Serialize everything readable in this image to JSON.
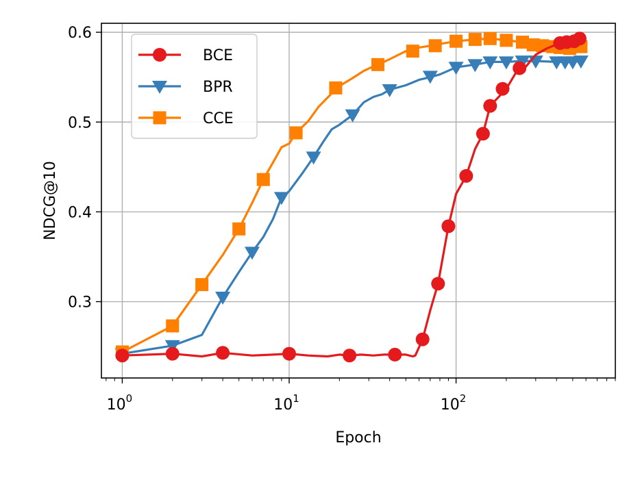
{
  "chart_data": {
    "type": "line",
    "title": "",
    "xlabel": "Epoch",
    "ylabel": "NDCG@10",
    "xscale": "log",
    "xlim": [
      0.75,
      900
    ],
    "ylim": [
      0.215,
      0.61
    ],
    "grid": true,
    "legend_position": "upper-left",
    "x_ticks": [
      {
        "value": 1,
        "base": "10",
        "exp": "0"
      },
      {
        "value": 10,
        "base": "10",
        "exp": "1"
      },
      {
        "value": 100,
        "base": "10",
        "exp": "2"
      }
    ],
    "y_ticks": [
      {
        "value": 0.3,
        "label": "0.3"
      },
      {
        "value": 0.4,
        "label": "0.4"
      },
      {
        "value": 0.5,
        "label": "0.5"
      },
      {
        "value": 0.6,
        "label": "0.6"
      }
    ],
    "series": [
      {
        "name": "BCE",
        "color": "#e41a1c",
        "marker": "circle",
        "x": [
          1,
          2,
          3,
          4,
          6,
          8,
          10,
          13,
          17,
          20,
          23,
          27,
          32,
          37,
          43,
          50,
          55,
          57,
          63,
          70,
          78,
          90,
          100,
          115,
          130,
          145,
          160,
          180,
          200,
          230,
          260,
          300,
          350,
          420,
          500,
          550,
          560
        ],
        "y": [
          0.24,
          0.242,
          0.239,
          0.243,
          0.24,
          0.241,
          0.242,
          0.24,
          0.239,
          0.241,
          0.24,
          0.241,
          0.24,
          0.241,
          0.241,
          0.241,
          0.239,
          0.24,
          0.258,
          0.29,
          0.32,
          0.384,
          0.42,
          0.44,
          0.47,
          0.487,
          0.518,
          0.528,
          0.537,
          0.556,
          0.561,
          0.575,
          0.582,
          0.588,
          0.592,
          0.593,
          0.592
        ],
        "marker_x": [
          1,
          2,
          4,
          10,
          23,
          43,
          63,
          78,
          90,
          115,
          145,
          160,
          190,
          240,
          420,
          460,
          510,
          550
        ],
        "marker_y": [
          0.24,
          0.242,
          0.243,
          0.242,
          0.24,
          0.241,
          0.258,
          0.32,
          0.384,
          0.44,
          0.487,
          0.518,
          0.537,
          0.56,
          0.588,
          0.589,
          0.59,
          0.593
        ]
      },
      {
        "name": "BPR",
        "color": "#377eb8",
        "marker": "triangle_down",
        "x": [
          1,
          2,
          3,
          4,
          5,
          6,
          7,
          8,
          9,
          10,
          12,
          14,
          16,
          18,
          20,
          24,
          28,
          32,
          36,
          40,
          50,
          60,
          70,
          80,
          100,
          130,
          160,
          200,
          250,
          300,
          400,
          500,
          560
        ],
        "y": [
          0.242,
          0.251,
          0.263,
          0.305,
          0.333,
          0.355,
          0.372,
          0.392,
          0.416,
          0.423,
          0.443,
          0.461,
          0.478,
          0.492,
          0.497,
          0.508,
          0.522,
          0.528,
          0.531,
          0.536,
          0.541,
          0.547,
          0.55,
          0.553,
          0.561,
          0.564,
          0.567,
          0.567,
          0.568,
          0.568,
          0.567,
          0.567,
          0.568
        ],
        "marker_x": [
          1,
          2,
          4,
          6,
          9,
          14,
          24,
          40,
          70,
          100,
          130,
          160,
          200,
          250,
          300,
          400,
          450,
          500,
          560
        ],
        "marker_y": [
          0.242,
          0.251,
          0.305,
          0.355,
          0.416,
          0.461,
          0.508,
          0.536,
          0.551,
          0.561,
          0.564,
          0.567,
          0.567,
          0.568,
          0.568,
          0.567,
          0.567,
          0.567,
          0.568
        ]
      },
      {
        "name": "CCE",
        "color": "#ff7f00",
        "marker": "square",
        "x": [
          1,
          2,
          3,
          4,
          5,
          6,
          7,
          8,
          9,
          10,
          11,
          13,
          15,
          18,
          20,
          24,
          28,
          32,
          36,
          40,
          50,
          60,
          70,
          80,
          100,
          130,
          160,
          200,
          250,
          300,
          400,
          500,
          560
        ],
        "y": [
          0.244,
          0.273,
          0.319,
          0.352,
          0.381,
          0.41,
          0.436,
          0.455,
          0.472,
          0.476,
          0.488,
          0.501,
          0.517,
          0.532,
          0.54,
          0.549,
          0.557,
          0.562,
          0.566,
          0.57,
          0.579,
          0.583,
          0.585,
          0.587,
          0.59,
          0.592,
          0.593,
          0.591,
          0.589,
          0.587,
          0.585,
          0.582,
          0.584
        ],
        "marker_x": [
          1,
          2,
          3,
          5,
          7,
          11,
          19,
          34,
          55,
          75,
          100,
          130,
          160,
          200,
          250,
          290,
          330,
          380,
          420,
          480,
          560
        ],
        "marker_y": [
          0.244,
          0.273,
          0.319,
          0.381,
          0.436,
          0.488,
          0.538,
          0.564,
          0.579,
          0.585,
          0.59,
          0.592,
          0.593,
          0.591,
          0.589,
          0.586,
          0.585,
          0.584,
          0.583,
          0.582,
          0.584
        ]
      }
    ]
  }
}
